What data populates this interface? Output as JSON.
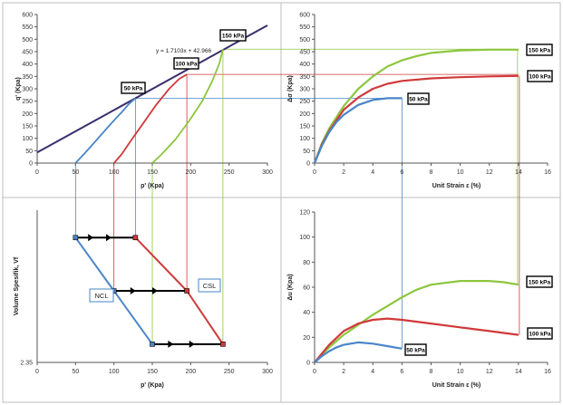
{
  "chart_data": [
    {
      "id": "pq",
      "type": "line",
      "xlabel": "p' (Kpa)",
      "ylabel": "q' (Kpa)",
      "xlim": [
        0,
        300
      ],
      "ylim": [
        0,
        600
      ],
      "xticks": [
        0,
        50,
        100,
        150,
        200,
        250,
        300
      ],
      "yticks": [
        0,
        50,
        100,
        150,
        200,
        250,
        300,
        350,
        400,
        450,
        500,
        550,
        600
      ],
      "grid": false,
      "series": [
        {
          "name": "CSL",
          "color": "#3b2e6e",
          "x": [
            0,
            300
          ],
          "y": [
            42.966,
            556.056
          ]
        },
        {
          "name": "50 kPa",
          "color": "#4a86c8",
          "x": [
            50,
            62,
            78,
            95,
            110,
            120,
            128
          ],
          "y": [
            0,
            40,
            95,
            155,
            205,
            240,
            262
          ]
        },
        {
          "name": "100 kPa",
          "color": "#d0393a",
          "x": [
            100,
            110,
            122,
            138,
            155,
            172,
            185,
            195
          ],
          "y": [
            0,
            35,
            90,
            160,
            235,
            300,
            340,
            358
          ]
        },
        {
          "name": "150 kPa",
          "color": "#8cc63e",
          "x": [
            150,
            162,
            180,
            198,
            215,
            228,
            237,
            242
          ],
          "y": [
            0,
            35,
            95,
            170,
            250,
            330,
            400,
            460
          ]
        }
      ],
      "annotations": [
        {
          "text": "y = 1.7103x + 42.966"
        },
        {
          "text": "150 kPa"
        },
        {
          "text": "100 kPa"
        },
        {
          "text": "50 kPa"
        }
      ]
    },
    {
      "id": "dev",
      "type": "line",
      "xlabel": "Unit Strain ε (%)",
      "ylabel": "Δσ (Kpa)",
      "xlim": [
        0,
        16
      ],
      "ylim": [
        0,
        600
      ],
      "xticks": [
        0,
        2,
        4,
        6,
        8,
        10,
        12,
        14,
        16
      ],
      "yticks": [
        0,
        50,
        100,
        150,
        200,
        250,
        300,
        350,
        400,
        450,
        500,
        550,
        600
      ],
      "grid": false,
      "series": [
        {
          "name": "150 kPa",
          "color": "#8cc63e",
          "x": [
            0,
            0.5,
            1,
            2,
            3,
            4,
            5,
            6,
            7,
            8,
            10,
            12,
            14
          ],
          "y": [
            0,
            80,
            140,
            230,
            300,
            350,
            390,
            415,
            432,
            445,
            455,
            458,
            458
          ]
        },
        {
          "name": "100 kPa",
          "color": "#d0393a",
          "x": [
            0,
            0.5,
            1,
            2,
            3,
            4,
            5,
            6,
            8,
            10,
            12,
            14
          ],
          "y": [
            0,
            75,
            130,
            215,
            265,
            300,
            320,
            332,
            342,
            347,
            350,
            352
          ]
        },
        {
          "name": "50 kPa",
          "color": "#4a86c8",
          "x": [
            0,
            0.5,
            1,
            1.5,
            2,
            3,
            4,
            5,
            6
          ],
          "y": [
            0,
            70,
            125,
            165,
            195,
            235,
            255,
            262,
            262
          ]
        }
      ],
      "annotations": [
        {
          "text": "150 kPa"
        },
        {
          "text": "100 kPa"
        },
        {
          "text": "50 kPa"
        }
      ]
    },
    {
      "id": "vol",
      "type": "line",
      "xlabel": "p' (Kpa)",
      "ylabel": "Volume Spesifik, Vf",
      "xlim": [
        0,
        300
      ],
      "xticks": [
        0,
        50,
        100,
        150,
        200,
        250,
        300
      ],
      "ytick_label": "2.35",
      "grid": false,
      "series": [
        {
          "name": "NCL",
          "color": "#4a86c8",
          "x": [
            50,
            100,
            150
          ],
          "v": [
            0.82,
            0.47,
            0.12
          ]
        },
        {
          "name": "CSL",
          "color": "#d0393a",
          "x": [
            128,
            195,
            242
          ],
          "v": [
            0.82,
            0.47,
            0.12
          ]
        },
        {
          "name": "50 kPa path",
          "color": "#000000",
          "x": [
            50,
            128
          ],
          "v": [
            0.82,
            0.82
          ]
        },
        {
          "name": "100 kPa path",
          "color": "#000000",
          "x": [
            100,
            195
          ],
          "v": [
            0.47,
            0.47
          ]
        },
        {
          "name": "150 kPa path",
          "color": "#000000",
          "x": [
            150,
            242
          ],
          "v": [
            0.12,
            0.12
          ]
        }
      ],
      "annotations": [
        {
          "text": "NCL"
        },
        {
          "text": "CSL"
        }
      ]
    },
    {
      "id": "pore",
      "type": "line",
      "xlabel": "Unit Strain ε (%)",
      "ylabel": "Δu (Kpa)",
      "xlim": [
        0,
        16
      ],
      "ylim": [
        0,
        120
      ],
      "xticks": [
        0,
        2,
        4,
        6,
        8,
        10,
        12,
        14,
        16
      ],
      "yticks": [
        0,
        20,
        40,
        60,
        80,
        100,
        120
      ],
      "grid": false,
      "series": [
        {
          "name": "150 kPa",
          "color": "#8cc63e",
          "x": [
            0,
            1,
            2,
            3,
            4,
            5,
            6,
            7,
            8,
            10,
            12,
            13,
            14
          ],
          "y": [
            0,
            12,
            22,
            30,
            38,
            45,
            52,
            58,
            62,
            65,
            65,
            64,
            62
          ]
        },
        {
          "name": "100 kPa",
          "color": "#d0393a",
          "x": [
            0,
            1,
            2,
            3,
            4,
            5,
            6,
            8,
            10,
            12,
            14
          ],
          "y": [
            0,
            14,
            25,
            31,
            34,
            35,
            34,
            31,
            28,
            25,
            22
          ]
        },
        {
          "name": "50 kPa",
          "color": "#4a86c8",
          "x": [
            0,
            0.5,
            1,
            1.5,
            2,
            3,
            4,
            5,
            6
          ],
          "y": [
            0,
            5,
            9,
            12,
            14,
            16,
            15,
            13,
            11
          ]
        }
      ],
      "annotations": [
        {
          "text": "150 kPa"
        },
        {
          "text": "100 kPa"
        },
        {
          "text": "50 kPa"
        }
      ]
    }
  ]
}
